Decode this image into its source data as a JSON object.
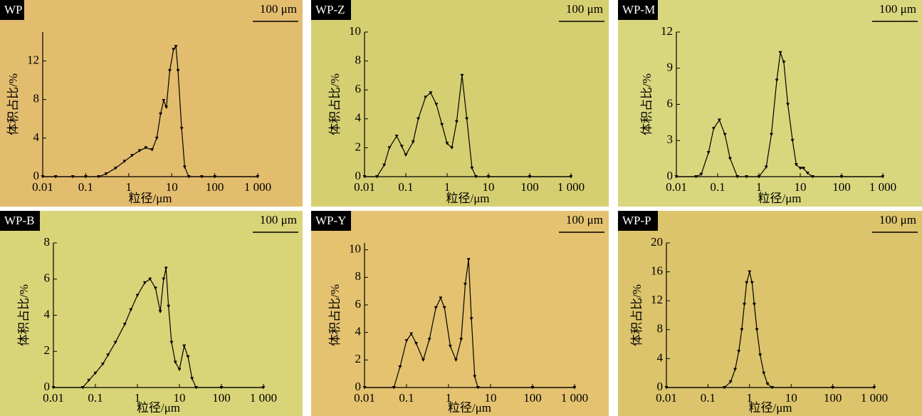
{
  "chart_data": [
    {
      "type": "line",
      "title": "WP",
      "scale_bar": "100 μm",
      "xlabel": "粒径/μm",
      "ylabel": "体积占比/%",
      "log_x": true,
      "color": "#000000",
      "xlim": [
        0.01,
        1000
      ],
      "xticks": [
        0.01,
        0.1,
        1,
        10,
        100,
        {
          "value": 1000,
          "label": "1 000"
        }
      ],
      "ylim": [
        0,
        15
      ],
      "yticks": [
        0,
        4,
        8,
        12
      ],
      "x": [
        0.01,
        0.02,
        0.05,
        0.1,
        0.2,
        0.3,
        0.5,
        0.8,
        1.2,
        1.8,
        2.5,
        3.5,
        4.5,
        5.5,
        6.5,
        7.5,
        9,
        11,
        12.5,
        14,
        17,
        20,
        25,
        50,
        100,
        1000
      ],
      "values": [
        0,
        0,
        0,
        0,
        0,
        0.3,
        0.9,
        1.6,
        2.2,
        2.7,
        3.0,
        2.8,
        4.0,
        6.5,
        7.9,
        7.2,
        11,
        13.2,
        13.5,
        11,
        5,
        1,
        0,
        0,
        0,
        0
      ]
    },
    {
      "type": "line",
      "title": "WP-Z",
      "scale_bar": "100 μm",
      "xlabel": "粒径/μm",
      "ylabel": "体积占比/%",
      "log_x": true,
      "color": "#000000",
      "xlim": [
        0.01,
        1000
      ],
      "xticks": [
        0.01,
        0.1,
        1,
        10,
        100,
        {
          "value": 1000,
          "label": "1 000"
        }
      ],
      "ylim": [
        0,
        10
      ],
      "yticks": [
        0,
        2,
        4,
        6,
        8,
        10
      ],
      "x": [
        0.01,
        0.02,
        0.03,
        0.04,
        0.06,
        0.08,
        0.1,
        0.15,
        0.2,
        0.3,
        0.4,
        0.55,
        0.75,
        1,
        1.3,
        1.7,
        2.3,
        3,
        4,
        5,
        10,
        100,
        1000
      ],
      "values": [
        0,
        0,
        0.8,
        2.0,
        2.8,
        2.1,
        1.5,
        2.4,
        4.0,
        5.5,
        5.8,
        5.0,
        3.6,
        2.3,
        2.0,
        3.8,
        7.0,
        4.0,
        0.6,
        0,
        0,
        0,
        0
      ]
    },
    {
      "type": "line",
      "title": "WP-M",
      "scale_bar": "100 μm",
      "xlabel": "粒径/μm",
      "ylabel": "体积占比/%",
      "log_x": true,
      "color": "#000000",
      "xlim": [
        0.01,
        1000
      ],
      "xticks": [
        0.01,
        0.1,
        1,
        10,
        100,
        {
          "value": 1000,
          "label": "1 000"
        }
      ],
      "ylim": [
        0,
        12
      ],
      "yticks": [
        0,
        3,
        6,
        9,
        12
      ],
      "x": [
        0.01,
        0.03,
        0.04,
        0.06,
        0.08,
        0.11,
        0.15,
        0.2,
        0.3,
        0.5,
        1,
        1.5,
        2,
        2.7,
        3.3,
        4,
        5,
        6.5,
        8,
        10,
        12,
        15,
        20,
        100,
        1000
      ],
      "values": [
        0,
        0,
        0.2,
        2.0,
        4.0,
        4.7,
        3.5,
        1.5,
        0,
        0,
        0,
        0.8,
        3.5,
        8.0,
        10.3,
        9.5,
        6.0,
        3.0,
        1.0,
        0.7,
        0.7,
        0.3,
        0,
        0,
        0
      ]
    },
    {
      "type": "line",
      "title": "WP-B",
      "scale_bar": "100 μm",
      "xlabel": "粒径/μm",
      "ylabel": "体积占比/%",
      "log_x": true,
      "color": "#000000",
      "xlim": [
        0.01,
        1000
      ],
      "xticks": [
        0.01,
        0.1,
        1,
        10,
        100,
        {
          "value": 1000,
          "label": "1 000"
        }
      ],
      "ylim": [
        0,
        8
      ],
      "yticks": [
        0,
        2,
        4,
        6,
        8
      ],
      "x": [
        0.01,
        0.05,
        0.07,
        0.1,
        0.15,
        0.2,
        0.3,
        0.5,
        0.7,
        1,
        1.5,
        2,
        2.7,
        3.5,
        4.2,
        4.8,
        5.5,
        6.5,
        8,
        10,
        13,
        16,
        20,
        25,
        100,
        1000
      ],
      "values": [
        0,
        0,
        0.4,
        0.8,
        1.3,
        1.8,
        2.5,
        3.5,
        4.3,
        5.1,
        5.8,
        6.0,
        5.5,
        4.2,
        6.0,
        6.6,
        4.5,
        2.5,
        1.4,
        1.0,
        2.3,
        1.7,
        0.5,
        0,
        0,
        0
      ]
    },
    {
      "type": "line",
      "title": "WP-Y",
      "scale_bar": "100 μm",
      "xlabel": "粒径/μm",
      "ylabel": "体积占比/%",
      "log_x": true,
      "color": "#000000",
      "xlim": [
        0.01,
        1000
      ],
      "xticks": [
        0.01,
        0.1,
        1,
        10,
        100,
        {
          "value": 1000,
          "label": "1 000"
        }
      ],
      "ylim": [
        0,
        10.5
      ],
      "yticks": [
        0,
        2,
        4,
        6,
        8,
        10
      ],
      "x": [
        0.01,
        0.05,
        0.07,
        0.1,
        0.13,
        0.17,
        0.25,
        0.35,
        0.5,
        0.65,
        0.8,
        1.1,
        1.5,
        2,
        2.5,
        3,
        3.5,
        4.2,
        5,
        100,
        1000
      ],
      "values": [
        0,
        0,
        1.5,
        3.4,
        3.9,
        3.2,
        2.0,
        3.5,
        5.8,
        6.5,
        5.8,
        3.0,
        2.0,
        3.5,
        7.5,
        9.3,
        5,
        0.8,
        0,
        0,
        0
      ]
    },
    {
      "type": "line",
      "title": "WP-P",
      "scale_bar": "100 μm",
      "xlabel": "粒径/μm",
      "ylabel": "体积占比/%",
      "log_x": true,
      "color": "#000000",
      "xlim": [
        0.01,
        1000
      ],
      "xticks": [
        0.01,
        0.1,
        1,
        10,
        100,
        {
          "value": 1000,
          "label": "1 000"
        }
      ],
      "ylim": [
        0,
        20
      ],
      "yticks": [
        0,
        4,
        8,
        12,
        16,
        20
      ],
      "x": [
        0.01,
        0.25,
        0.35,
        0.45,
        0.55,
        0.65,
        0.75,
        0.85,
        1,
        1.15,
        1.3,
        1.5,
        1.8,
        2.2,
        2.7,
        3.5,
        100,
        1000
      ],
      "values": [
        0,
        0,
        0.8,
        2.5,
        5,
        8,
        11.5,
        14.5,
        16,
        14.5,
        11.5,
        8,
        4.5,
        2,
        0.5,
        0,
        0,
        0
      ]
    }
  ]
}
